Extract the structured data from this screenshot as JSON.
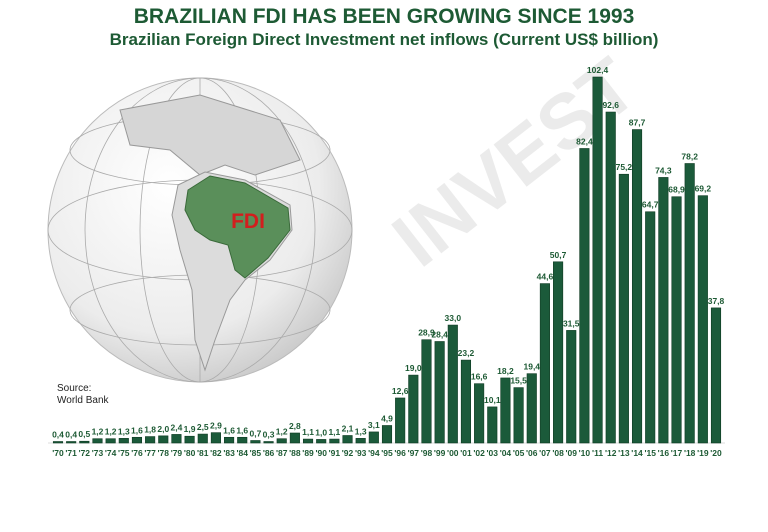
{
  "chart_data": {
    "type": "bar",
    "title": "BRAZILIAN FDI HAS BEEN GROWING SINCE 1993",
    "subtitle": "Brazilian Foreign Direct Investment net inflows (Current US$ billion)",
    "xlabel": "",
    "ylabel": "",
    "ylim": [
      0,
      105
    ],
    "grid": false,
    "categories": [
      "'70",
      "'71",
      "'72",
      "'73",
      "'74",
      "'75",
      "'76",
      "'77",
      "'78",
      "'79",
      "'80",
      "'81",
      "'82",
      "'83",
      "'84",
      "'85",
      "'86",
      "'87",
      "'88",
      "'89",
      "'90",
      "'91",
      "'92",
      "'93",
      "'94",
      "'95",
      "'96",
      "'97",
      "'98",
      "'99",
      "'00",
      "'01",
      "'02",
      "'03",
      "'04",
      "'05",
      "'06",
      "'07",
      "'08",
      "'09",
      "'10",
      "'11",
      "'12",
      "'13",
      "'14",
      "'15",
      "'16",
      "'17",
      "'18",
      "'19",
      "'20"
    ],
    "values": [
      0.4,
      0.4,
      0.5,
      1.2,
      1.2,
      1.3,
      1.6,
      1.8,
      2.0,
      2.4,
      1.9,
      2.5,
      2.9,
      1.6,
      1.6,
      0.7,
      0.3,
      1.2,
      2.8,
      1.1,
      1.0,
      1.1,
      2.1,
      1.3,
      3.1,
      4.9,
      12.6,
      19.0,
      28.9,
      28.4,
      33.0,
      23.2,
      16.6,
      10.1,
      18.2,
      15.5,
      19.4,
      44.6,
      50.7,
      31.5,
      82.4,
      102.4,
      92.6,
      75.2,
      87.7,
      64.7,
      74.3,
      68.9,
      78.2,
      69.2,
      37.8
    ],
    "data_labels": [
      "0,4",
      "0,4",
      "0,5",
      "1,2",
      "1,2",
      "1,3",
      "1,6",
      "1,8",
      "2,0",
      "2,4",
      "1,9",
      "2,5",
      "2,9",
      "1,6",
      "1,6",
      "0,7",
      "0,3",
      "1,2",
      "2,8",
      "1,1",
      "1,0",
      "1,1",
      "2,1",
      "1,3",
      "3,1",
      "4,9",
      "12,6",
      "19,0",
      "28,9",
      "28,4",
      "33,0",
      "23,2",
      "16,6",
      "10,1",
      "18,2",
      "15,5",
      "19,4",
      "44,6",
      "50,7",
      "31,5",
      "82,4",
      "102,4",
      "92,6",
      "75,2",
      "87,7",
      "64,7",
      "74,3",
      "68,9",
      "78,2",
      "69,2",
      "37,8"
    ],
    "bar_color": "#1b5a3a",
    "text_color": "#1d5a34"
  },
  "annotation": {
    "globe_label": "FDI"
  },
  "source": {
    "label": "Source:",
    "value": "World Bank"
  },
  "watermark": "INVEST"
}
